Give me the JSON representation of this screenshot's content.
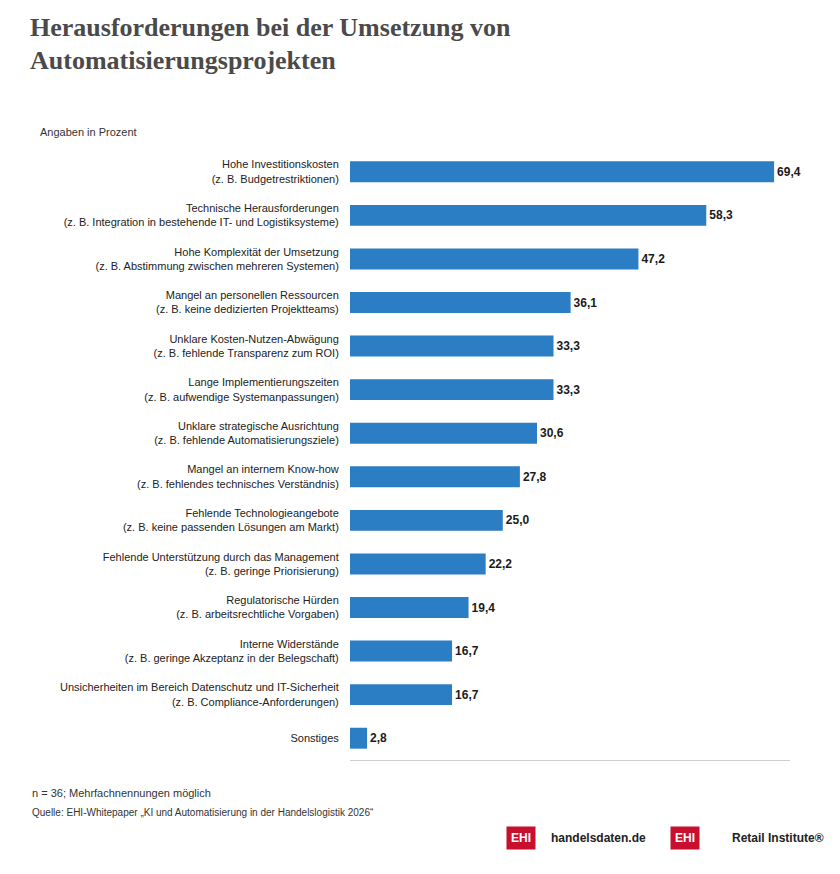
{
  "chart_data": {
    "type": "bar",
    "orientation": "horizontal",
    "title": "Herausforderungen bei der Umsetzung von Automatisierungsprojekten",
    "subtitle": "Angaben in Prozent",
    "categories": [
      "Hohe Investitionskosten (z. B. Budgetrestriktionen)",
      "Technische Herausforderungen (z. B. Integration in bestehende IT- und Logistiksysteme)",
      "Hohe Komplexität der Umsetzung (z. B. Abstimmung zwischen mehreren Systemen)",
      "Mangel an personellen Ressourcen (z. B. keine dedizierten Projektteams)",
      "Unklare Kosten-Nutzen-Abwägung (z. B. fehlende Transparenz zum ROI)",
      "Lange Implementierungszeiten (z. B. aufwendige Systemanpassungen)",
      "Unklare strategische Ausrichtung (z. B. fehlende Automatisierungsziele)",
      "Mangel an internem Know-how (z. B. fehlendes technisches Verständnis)",
      "Fehlende Technologieangebote (z. B. keine passenden Lösungen am Markt)",
      "Fehlende Unterstützung durch das Management (z. B. geringe Priorisierung)",
      "Regulatorische Hürden (z. B. arbeitsrechtliche Vorgaben)",
      "Interne Widerstände (z. B. geringe Akzeptanz in der Belegschaft)",
      "Unsicherheiten im Bereich Datenschutz und IT-Sicherheit (z. B. Compliance-Anforderungen)",
      "Sonstiges"
    ],
    "values": [
      69.4,
      58.3,
      47.2,
      36.1,
      33.3,
      33.3,
      30.6,
      27.8,
      25.0,
      22.2,
      19.4,
      16.7,
      16.7,
      2.8
    ],
    "value_labels": [
      "69,4",
      "58,3",
      "47,2",
      "36,1",
      "33,3",
      "33,3",
      "30,6",
      "27,8",
      "25,0",
      "22,2",
      "19,4",
      "16,7",
      "16,7",
      "2,8"
    ],
    "color": "#2b7ec3",
    "data_labels": true,
    "xlim": [
      0,
      72
    ],
    "xticks": [],
    "grid": false,
    "tick_labels": "y",
    "note": "n = 36; Mehrfachnennungen möglich",
    "source": "Quelle: EHI-Whitepaper „KI und Automatisierung in der Handelslogistik 2026“",
    "logos": [
      {
        "mark": "EHI",
        "text": "handelsdaten.de"
      },
      {
        "mark": "EHI",
        "text": "Retail Institute®"
      }
    ]
  }
}
